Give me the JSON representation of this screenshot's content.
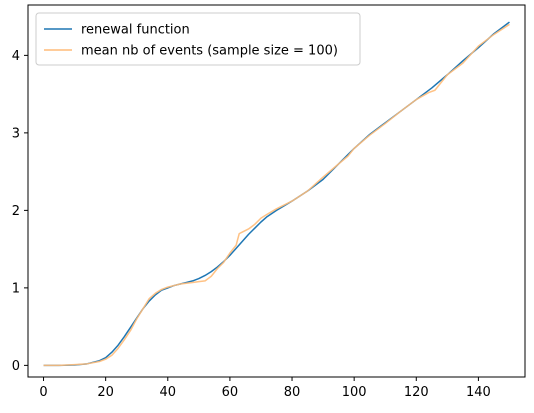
{
  "chart_data": {
    "type": "line",
    "title": "",
    "xlabel": "",
    "ylabel": "",
    "xlim": [
      -5,
      155
    ],
    "ylim": [
      -0.15,
      4.65
    ],
    "xticks": [
      0,
      20,
      40,
      60,
      80,
      100,
      120,
      140
    ],
    "yticks": [
      0,
      1,
      2,
      3,
      4
    ],
    "grid": false,
    "legend_position": "top-left",
    "series": [
      {
        "name": "renewal function",
        "color": "#1f77b4",
        "x": [
          0,
          5,
          10,
          14,
          18,
          20,
          22,
          24,
          26,
          28,
          30,
          32,
          34,
          36,
          38,
          40,
          42,
          44,
          46,
          48,
          50,
          52,
          54,
          56,
          58,
          60,
          62,
          64,
          66,
          68,
          70,
          72,
          75,
          80,
          85,
          90,
          95,
          100,
          105,
          110,
          115,
          120,
          125,
          130,
          135,
          140,
          145,
          150
        ],
        "y": [
          0,
          0,
          0.005,
          0.02,
          0.06,
          0.1,
          0.17,
          0.26,
          0.37,
          0.49,
          0.61,
          0.73,
          0.83,
          0.91,
          0.97,
          1.0,
          1.03,
          1.05,
          1.07,
          1.09,
          1.12,
          1.16,
          1.21,
          1.27,
          1.34,
          1.42,
          1.51,
          1.6,
          1.69,
          1.77,
          1.85,
          1.92,
          2.0,
          2.12,
          2.25,
          2.4,
          2.6,
          2.8,
          2.98,
          3.13,
          3.28,
          3.43,
          3.58,
          3.75,
          3.93,
          4.1,
          4.28,
          4.43
        ]
      },
      {
        "name": "mean nb of events (sample size = 100)",
        "color": "#ffbb78",
        "x": [
          0,
          5,
          10,
          14,
          18,
          20,
          22,
          24,
          26,
          28,
          30,
          32,
          34,
          36,
          38,
          40,
          42,
          44,
          46,
          48,
          50,
          52,
          54,
          56,
          58,
          60,
          62,
          63,
          64,
          66,
          68,
          70,
          72,
          75,
          80,
          85,
          90,
          95,
          98,
          100,
          105,
          110,
          115,
          120,
          124,
          126,
          130,
          135,
          140,
          145,
          150
        ],
        "y": [
          0,
          0,
          0.01,
          0.02,
          0.05,
          0.08,
          0.13,
          0.22,
          0.33,
          0.45,
          0.6,
          0.73,
          0.86,
          0.93,
          0.98,
          1.01,
          1.03,
          1.05,
          1.06,
          1.07,
          1.08,
          1.09,
          1.15,
          1.25,
          1.33,
          1.45,
          1.55,
          1.7,
          1.72,
          1.76,
          1.82,
          1.9,
          1.95,
          2.02,
          2.12,
          2.25,
          2.43,
          2.6,
          2.7,
          2.8,
          2.97,
          3.12,
          3.28,
          3.43,
          3.52,
          3.55,
          3.75,
          3.9,
          4.12,
          4.27,
          4.4
        ]
      }
    ]
  }
}
